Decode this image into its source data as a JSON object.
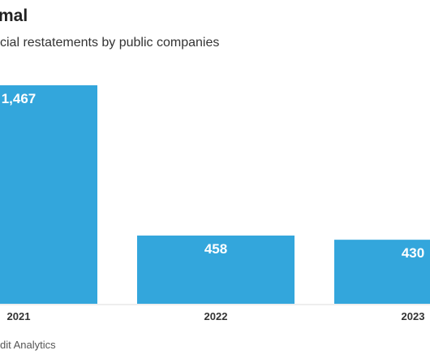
{
  "title": "mal",
  "subtitle": "cial restatements by public companies",
  "source": "dit Analytics",
  "colors": {
    "bar": "#33a6dc",
    "baseline": "#dddddd"
  },
  "chart_data": {
    "type": "bar",
    "categories": [
      "2021",
      "2022",
      "2023"
    ],
    "values": [
      1467,
      458,
      430
    ],
    "value_labels": [
      "1,467",
      "458",
      "430"
    ],
    "ylim": [
      0,
      1467
    ],
    "grid": false,
    "legend": "none"
  }
}
